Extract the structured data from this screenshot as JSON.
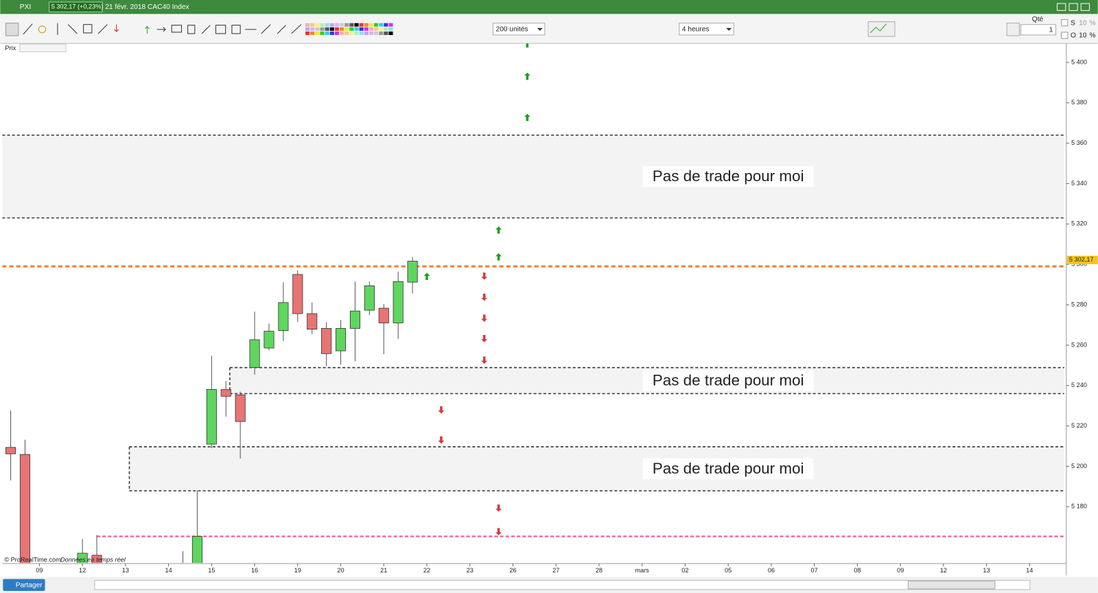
{
  "window": {
    "symbol": "PXI",
    "quote": "5 302,17 (+0,23%)",
    "info": "21 févr. 2018 CAC40 Index"
  },
  "toolbar": {
    "units": "200 unités",
    "timeframe": "4 heures",
    "qty_label": "Qté",
    "qty": "1",
    "s_label": "S",
    "o_label": "O",
    "s_value": "10",
    "o_value": "10",
    "percent": "%"
  },
  "panel_label": "Prix",
  "footer": {
    "copyright": "© ProRealTime.com",
    "note": "Données en temps réel"
  },
  "share_button": "Partager",
  "chart_data": {
    "type": "candlestick",
    "categories": [
      null,
      null,
      "09",
      null,
      null,
      "12",
      null,
      null,
      "13",
      null,
      null,
      "14",
      null,
      null,
      "15",
      null,
      null,
      "16",
      null,
      null,
      "19",
      null,
      null,
      "20",
      null,
      null,
      "21",
      null,
      null,
      "22",
      null,
      null,
      "23",
      null,
      null,
      "26",
      null,
      null,
      "27",
      null,
      null,
      "28",
      null,
      null,
      "mars",
      null,
      null,
      "02",
      null,
      null,
      "05",
      null,
      null,
      "06",
      null,
      null,
      "07",
      null,
      null,
      "08",
      null,
      null,
      "09",
      null,
      null,
      "12",
      null,
      null,
      "13",
      null,
      null,
      "14",
      null,
      null
    ],
    "candles": {
      "slots": [
        0,
        1,
        5,
        6,
        12,
        13,
        14,
        15,
        16,
        17,
        18,
        19,
        20,
        21,
        22,
        23,
        24,
        25,
        26,
        27,
        28
      ],
      "open": [
        5209.4,
        5205.9,
        5148,
        5156,
        5145,
        5150,
        5211,
        5238,
        5235.4,
        5248.9,
        5258.6,
        5267.2,
        5295,
        5275.6,
        5268.3,
        5257.2,
        5268.3,
        5277.3,
        5278.3,
        5271,
        5291.2
      ],
      "high": [
        5227.7,
        5213.2,
        5164,
        5166,
        5158,
        5188,
        5254.8,
        5242.3,
        5237,
        5276.6,
        5270.7,
        5291.2,
        5297,
        5281.1,
        5271.4,
        5272.4,
        5291.5,
        5291.5,
        5280.4,
        5296.4,
        5303.6
      ],
      "low": [
        5193,
        5140,
        5140,
        5140,
        5140,
        5140,
        5209,
        5224.6,
        5203.8,
        5245.4,
        5257.5,
        5262,
        5271.4,
        5265.5,
        5249.6,
        5250.3,
        5252,
        5274.9,
        5255.5,
        5263.1,
        5285.6
      ],
      "close": [
        5206.2,
        5150,
        5157,
        5148,
        5146,
        5165.3,
        5238.1,
        5234.7,
        5222.2,
        5262.7,
        5266.9,
        5281.1,
        5275.6,
        5267.9,
        5255.8,
        5268.3,
        5276.9,
        5289.4,
        5271,
        5291.5,
        5301.6
      ]
    },
    "up_color": "#5fd65f",
    "down_color": "#e87474",
    "ylim": [
      5152.2,
      5409.4
    ],
    "yticks": [
      {
        "value": 5180,
        "label": "5 180"
      },
      {
        "value": 5200,
        "label": "5 200"
      },
      {
        "value": 5220,
        "label": "5 220"
      },
      {
        "value": 5240,
        "label": "5 240"
      },
      {
        "value": 5260,
        "label": "5 260"
      },
      {
        "value": 5280,
        "label": "5 280"
      },
      {
        "value": 5300,
        "label": "5 300"
      },
      {
        "value": 5320,
        "label": "5 320"
      },
      {
        "value": 5340,
        "label": "5 340"
      },
      {
        "value": 5360,
        "label": "5 360"
      },
      {
        "value": 5380,
        "label": "5 380"
      },
      {
        "value": 5400,
        "label": "5 400"
      }
    ],
    "last_price": {
      "value": 5302.17,
      "label": "5 302,17"
    },
    "price_line": {
      "value": 5299,
      "color": "#f47d20"
    },
    "support_line": {
      "value": 5165.3,
      "start": 6,
      "color": "#ee6fa8"
    },
    "zones": [
      {
        "low": 5323,
        "high": 5364,
        "start": 0,
        "label": "Pas de trade pour moi"
      },
      {
        "low": 5236,
        "high": 5248.9,
        "start": 16,
        "label": "Pas de trade pour moi"
      },
      {
        "low": 5187.9,
        "high": 5209.7,
        "start": 9,
        "label": "Pas de trade pour moi"
      }
    ],
    "buy_signals": {
      "slots": [
        36,
        36,
        36,
        34,
        34,
        29
      ],
      "values": [
        5409,
        5393,
        5372.6,
        5316.8,
        5303.6,
        5293.9
      ],
      "color": "#1fa01f"
    },
    "sell_signals": {
      "slots": [
        33,
        33,
        33,
        33,
        33,
        30,
        30,
        34,
        34
      ],
      "values": [
        5294.3,
        5283.9,
        5273.5,
        5263.4,
        5252.7,
        5228.1,
        5213.2,
        5179.5,
        5167.8
      ],
      "color": "#d83a3a"
    }
  }
}
